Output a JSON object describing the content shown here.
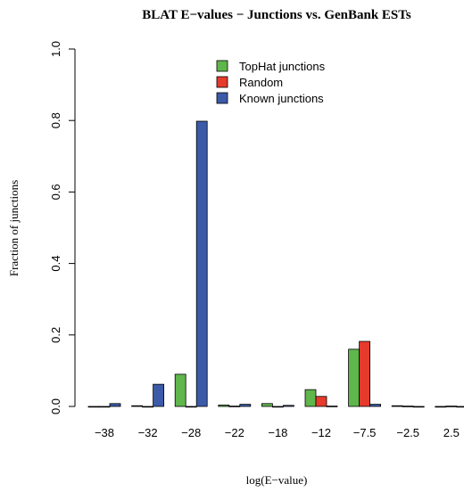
{
  "chart_data": {
    "type": "bar",
    "title": "BLAT E−values − Junctions vs. GenBank ESTs",
    "xlabel": "log(E−value)",
    "ylabel": "Fraction of junctions",
    "ylim": [
      0,
      1.0
    ],
    "yticks": [
      "0.0",
      "0.2",
      "0.4",
      "0.6",
      "0.8",
      "1.0"
    ],
    "categories": [
      "−38",
      "−32",
      "−28",
      "−22",
      "−18",
      "−12",
      "−7.5",
      "−2.5",
      "2.5"
    ],
    "series": [
      {
        "name": "TopHat junctions",
        "color": "#5fb64b",
        "values": [
          0.0,
          0.002,
          0.09,
          0.004,
          0.008,
          0.047,
          0.16,
          0.002,
          0.0
        ]
      },
      {
        "name": "Random",
        "color": "#e53a2c",
        "values": [
          0.0,
          0.0,
          0.0,
          0.001,
          0.0,
          0.028,
          0.182,
          0.001,
          0.001
        ]
      },
      {
        "name": "Known junctions",
        "color": "#3b5ba9",
        "values": [
          0.008,
          0.062,
          0.798,
          0.006,
          0.003,
          0.001,
          0.006,
          0.0,
          0.0
        ]
      }
    ],
    "legend_position": "top-center",
    "grid": false
  }
}
